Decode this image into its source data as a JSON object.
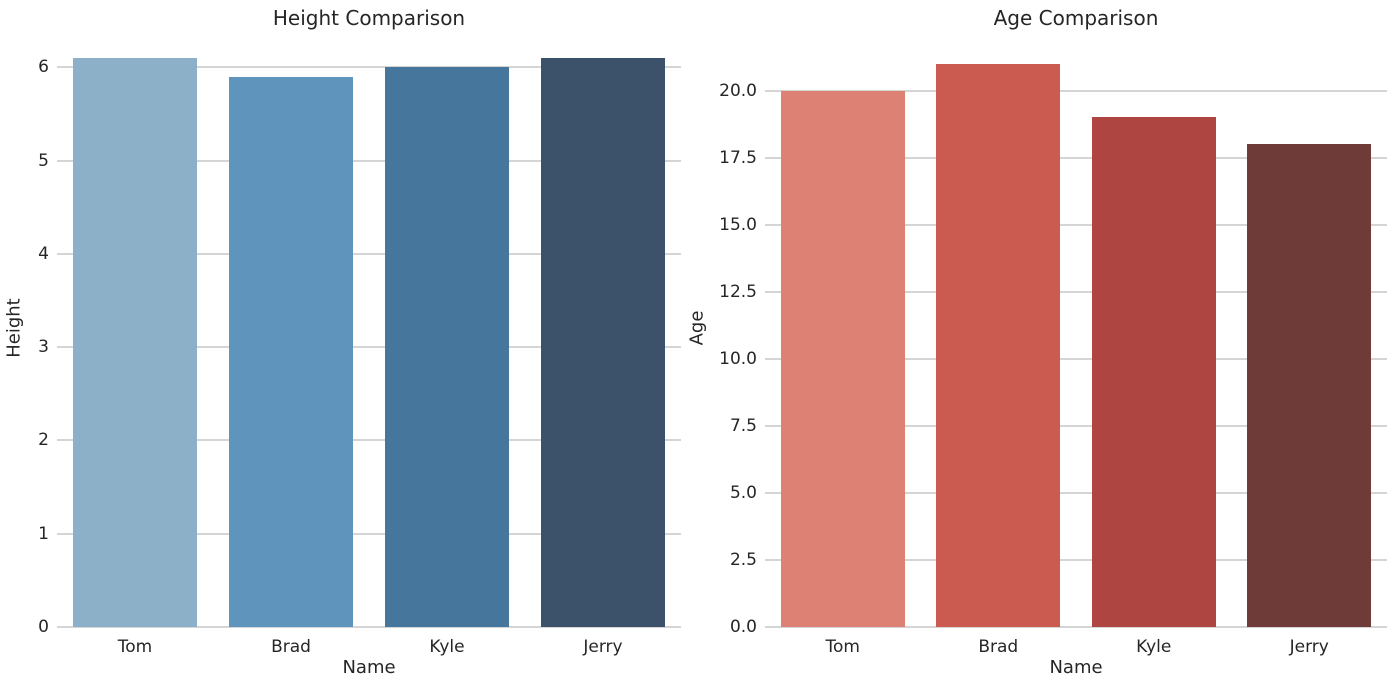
{
  "background": "#ffffff",
  "text_color": "#262626",
  "grid_color": "#d5d5d5",
  "chart_data": [
    {
      "type": "bar",
      "title": "Height Comparison",
      "xlabel": "Name",
      "ylabel": "Height",
      "categories": [
        "Tom",
        "Brad",
        "Kyle",
        "Jerry"
      ],
      "values": [
        6.1,
        5.9,
        6.0,
        6.1
      ],
      "ylim": [
        0,
        6.41
      ],
      "yticks": [
        0,
        1,
        2,
        3,
        4,
        5,
        6
      ],
      "ytick_labels": [
        "0",
        "1",
        "2",
        "3",
        "4",
        "5",
        "6"
      ],
      "grid": true,
      "legend": false,
      "bar_colors": [
        "#8cb0c8",
        "#5f94bc",
        "#46769c",
        "#3c526a"
      ]
    },
    {
      "type": "bar",
      "title": "Age Comparison",
      "xlabel": "Name",
      "ylabel": "Age",
      "categories": [
        "Tom",
        "Brad",
        "Kyle",
        "Jerry"
      ],
      "values": [
        20,
        21,
        19,
        18
      ],
      "ylim": [
        0,
        22.3
      ],
      "yticks": [
        0,
        2.5,
        5,
        7.5,
        10,
        12.5,
        15,
        17.5,
        20
      ],
      "ytick_labels": [
        "0.0",
        "2.5",
        "5.0",
        "7.5",
        "10.0",
        "12.5",
        "15.0",
        "17.5",
        "20.0"
      ],
      "grid": true,
      "legend": false,
      "bar_colors": [
        "#dd8175",
        "#cb5a51",
        "#af4541",
        "#6e3b38"
      ]
    }
  ]
}
